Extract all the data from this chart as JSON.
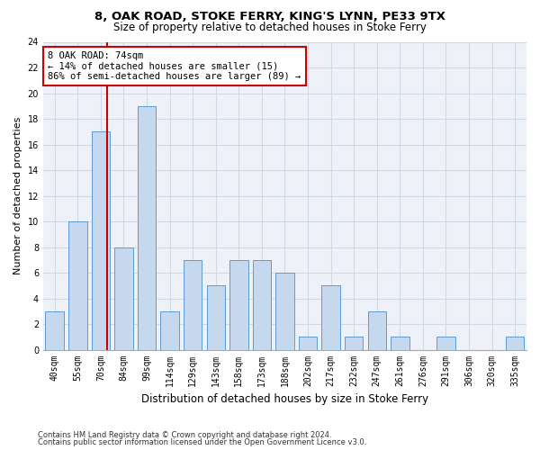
{
  "title1": "8, OAK ROAD, STOKE FERRY, KING'S LYNN, PE33 9TX",
  "title2": "Size of property relative to detached houses in Stoke Ferry",
  "xlabel": "Distribution of detached houses by size in Stoke Ferry",
  "ylabel": "Number of detached properties",
  "categories": [
    "40sqm",
    "55sqm",
    "70sqm",
    "84sqm",
    "99sqm",
    "114sqm",
    "129sqm",
    "143sqm",
    "158sqm",
    "173sqm",
    "188sqm",
    "202sqm",
    "217sqm",
    "232sqm",
    "247sqm",
    "261sqm",
    "276sqm",
    "291sqm",
    "306sqm",
    "320sqm",
    "335sqm"
  ],
  "values": [
    3,
    10,
    17,
    8,
    19,
    3,
    7,
    5,
    7,
    7,
    6,
    1,
    5,
    1,
    3,
    1,
    0,
    1,
    0,
    0,
    1
  ],
  "bar_color": "#c5d8ed",
  "bar_edge_color": "#5b9bd5",
  "bar_width": 0.8,
  "vline_x": 2.28,
  "vline_color": "#cc0000",
  "annotation_text": "8 OAK ROAD: 74sqm\n← 14% of detached houses are smaller (15)\n86% of semi-detached houses are larger (89) →",
  "annotation_box_color": "#ffffff",
  "annotation_box_edge": "#cc0000",
  "ylim": [
    0,
    24
  ],
  "yticks": [
    0,
    2,
    4,
    6,
    8,
    10,
    12,
    14,
    16,
    18,
    20,
    22,
    24
  ],
  "grid_color": "#d0d8e8",
  "background_color": "#eef2f8",
  "footer1": "Contains HM Land Registry data © Crown copyright and database right 2024.",
  "footer2": "Contains public sector information licensed under the Open Government Licence v3.0.",
  "title_fontsize": 9.5,
  "subtitle_fontsize": 8.5,
  "tick_fontsize": 7,
  "ylabel_fontsize": 8,
  "xlabel_fontsize": 8.5,
  "annotation_fontsize": 7.5,
  "footer_fontsize": 6
}
